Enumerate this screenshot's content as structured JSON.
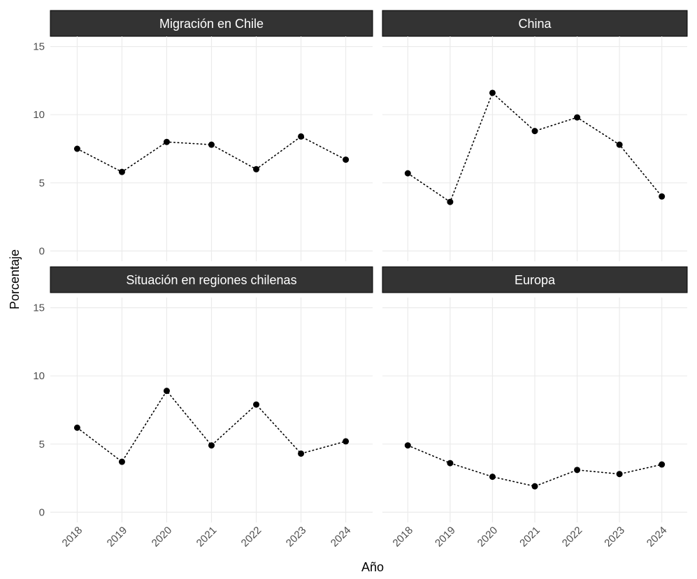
{
  "chart_data": [
    {
      "type": "line",
      "title": "Migración en Chile",
      "ylabel": "Porcentaje",
      "xlabel": "Año",
      "x": [
        2018,
        2019,
        2020,
        2021,
        2022,
        2023,
        2024
      ],
      "values": [
        7.5,
        5.8,
        8.0,
        7.8,
        6.0,
        8.4,
        6.7
      ],
      "color": "#000000",
      "xlim": [
        2017.4,
        2024.6
      ],
      "xticks": [
        2018,
        2019,
        2020,
        2021,
        2022,
        2023,
        2024
      ],
      "ylim": [
        -0.75,
        15.75
      ],
      "yticks": [
        0,
        5,
        10,
        15
      ],
      "grid": true
    },
    {
      "type": "line",
      "title": "China",
      "x": [
        2018,
        2019,
        2020,
        2021,
        2022,
        2023,
        2024
      ],
      "values": [
        5.7,
        3.6,
        11.6,
        8.8,
        9.8,
        7.8,
        4.0
      ],
      "color": "#000000",
      "xlim": [
        2017.4,
        2024.6
      ],
      "xticks": [
        2018,
        2019,
        2020,
        2021,
        2022,
        2023,
        2024
      ],
      "ylim": [
        -0.75,
        15.75
      ],
      "yticks": [
        0,
        5,
        10,
        15
      ],
      "grid": true
    },
    {
      "type": "line",
      "title": "Situación en regiones chilenas",
      "x": [
        2018,
        2019,
        2020,
        2021,
        2022,
        2023,
        2024
      ],
      "values": [
        6.2,
        3.7,
        8.9,
        4.9,
        7.9,
        4.3,
        5.2
      ],
      "color": "#000000",
      "xlim": [
        2017.4,
        2024.6
      ],
      "xticks": [
        2018,
        2019,
        2020,
        2021,
        2022,
        2023,
        2024
      ],
      "ylim": [
        -0.75,
        15.75
      ],
      "yticks": [
        0,
        5,
        10,
        15
      ],
      "grid": true
    },
    {
      "type": "line",
      "title": "Europa",
      "x": [
        2018,
        2019,
        2020,
        2021,
        2022,
        2023,
        2024
      ],
      "values": [
        4.9,
        3.6,
        2.6,
        1.9,
        3.1,
        2.8,
        3.5
      ],
      "color": "#000000",
      "xlim": [
        2017.4,
        2024.6
      ],
      "xticks": [
        2018,
        2019,
        2020,
        2021,
        2022,
        2023,
        2024
      ],
      "ylim": [
        -0.75,
        15.75
      ],
      "yticks": [
        0,
        5,
        10,
        15
      ],
      "grid": true
    }
  ]
}
